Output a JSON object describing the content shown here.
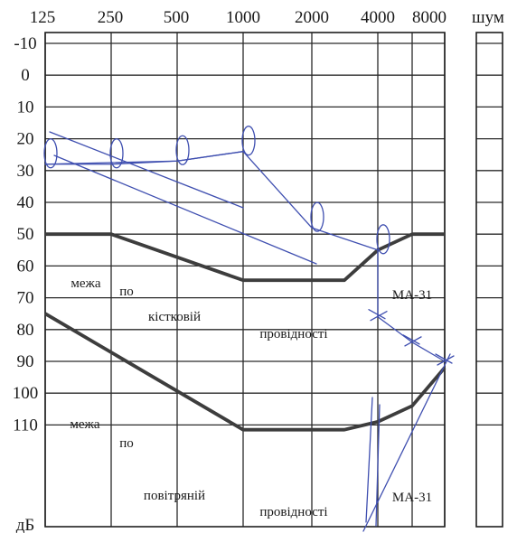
{
  "chart_data": {
    "type": "line",
    "x_tick_labels": [
      "125",
      "250",
      "500",
      "1000",
      "2000",
      "4000",
      "8000"
    ],
    "y_tick_labels": [
      "-10",
      "0",
      "10",
      "20",
      "30",
      "40",
      "50",
      "60",
      "70",
      "80",
      "90",
      "100",
      "110"
    ],
    "x_unit_hz": [
      125,
      250,
      500,
      1000,
      2000,
      4000,
      8000
    ],
    "y_values_db": [
      -10,
      0,
      10,
      20,
      30,
      40,
      50,
      60,
      70,
      80,
      90,
      100,
      110
    ],
    "ylabel": "дБ",
    "noise_column_label": "шум",
    "ylim": [
      -10,
      115
    ],
    "y_inverted": true,
    "grid": true,
    "limits": [
      {
        "id": "bone",
        "labels": [
          "межа",
          "по",
          "кістковій",
          "провідності"
        ],
        "device": "MA-31",
        "points": [
          [
            125,
            50
          ],
          [
            250,
            50
          ],
          [
            1000,
            64.5
          ],
          [
            3000,
            64.5
          ],
          [
            4000,
            55
          ],
          [
            6000,
            50
          ],
          [
            8000,
            50
          ]
        ]
      },
      {
        "id": "air",
        "labels": [
          "межа",
          "по",
          "повітряній",
          "провідності"
        ],
        "device": "MA-31",
        "points": [
          [
            125,
            75
          ],
          [
            1000,
            111.5
          ],
          [
            3000,
            111.5
          ],
          [
            4000,
            109
          ],
          [
            6000,
            104
          ],
          [
            8000,
            92
          ]
        ]
      }
    ],
    "handwritten_points": [
      [
        125,
        28
      ],
      [
        250,
        28
      ],
      [
        500,
        27
      ],
      [
        1000,
        24
      ],
      [
        2000,
        48
      ],
      [
        4000,
        55
      ],
      [
        4000,
        76
      ],
      [
        6000,
        84
      ],
      [
        8000,
        90
      ]
    ]
  }
}
